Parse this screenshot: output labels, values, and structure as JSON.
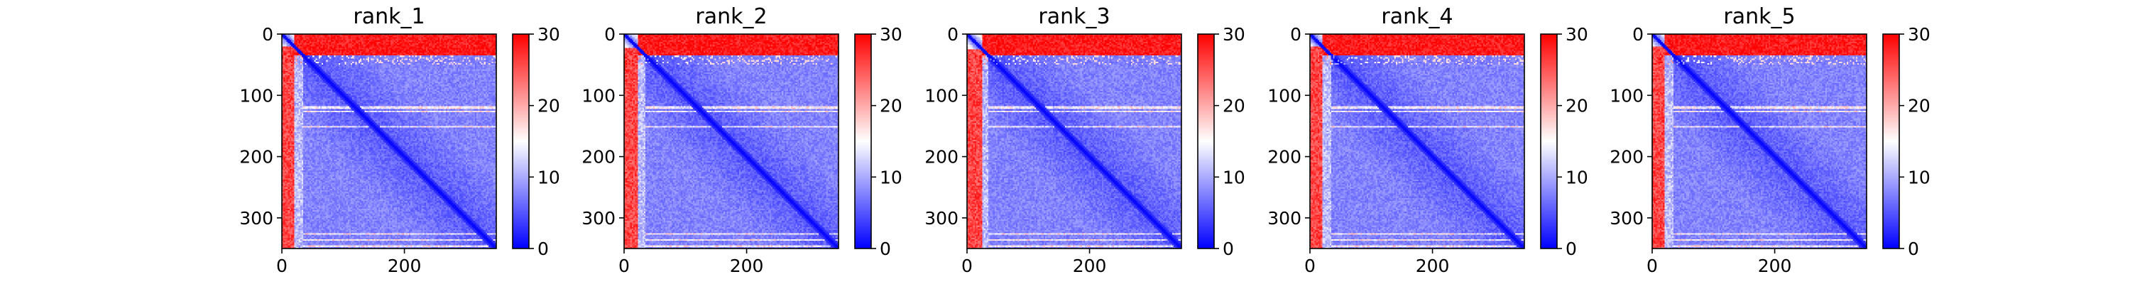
{
  "chart_data": [
    {
      "type": "heatmap",
      "title": "rank_1",
      "xlabel": "",
      "ylabel": "",
      "matrix_size": 350,
      "x_ticks": [
        0,
        200
      ],
      "y_ticks": [
        0,
        100,
        200,
        300
      ],
      "colorbar": {
        "ticks": [
          0,
          10,
          20,
          30
        ],
        "range": [
          0,
          30
        ],
        "colormap": [
          "#0000ff",
          "#ffffff",
          "#ff0000"
        ]
      },
      "structure": {
        "disordered_n_terminal_end": 20,
        "disordered_block_end": 35,
        "banded_rows": [
          118,
          125,
          150,
          325,
          335,
          345
        ]
      },
      "grid": false,
      "legend": "none"
    },
    {
      "type": "heatmap",
      "title": "rank_2",
      "xlabel": "",
      "ylabel": "",
      "matrix_size": 350,
      "x_ticks": [
        0,
        200
      ],
      "y_ticks": [
        0,
        100,
        200,
        300
      ],
      "colorbar": {
        "ticks": [
          0,
          10,
          20,
          30
        ],
        "range": [
          0,
          30
        ],
        "colormap": [
          "#0000ff",
          "#ffffff",
          "#ff0000"
        ]
      },
      "structure": {
        "disordered_n_terminal_end": 22,
        "disordered_block_end": 35,
        "banded_rows": [
          118,
          125,
          150,
          325,
          335,
          345
        ]
      },
      "grid": false,
      "legend": "none"
    },
    {
      "type": "heatmap",
      "title": "rank_3",
      "xlabel": "",
      "ylabel": "",
      "matrix_size": 350,
      "x_ticks": [
        0,
        200
      ],
      "y_ticks": [
        0,
        100,
        200,
        300
      ],
      "colorbar": {
        "ticks": [
          0,
          10,
          20,
          30
        ],
        "range": [
          0,
          30
        ],
        "colormap": [
          "#0000ff",
          "#ffffff",
          "#ff0000"
        ]
      },
      "structure": {
        "disordered_n_terminal_end": 24,
        "disordered_block_end": 35,
        "banded_rows": [
          118,
          125,
          150,
          325,
          335,
          345
        ]
      },
      "grid": false,
      "legend": "none"
    },
    {
      "type": "heatmap",
      "title": "rank_4",
      "xlabel": "",
      "ylabel": "",
      "matrix_size": 350,
      "x_ticks": [
        0,
        200
      ],
      "y_ticks": [
        0,
        100,
        200,
        300
      ],
      "colorbar": {
        "ticks": [
          0,
          10,
          20,
          30
        ],
        "range": [
          0,
          30
        ],
        "colormap": [
          "#0000ff",
          "#ffffff",
          "#ff0000"
        ]
      },
      "structure": {
        "disordered_n_terminal_end": 18,
        "disordered_block_end": 35,
        "banded_rows": [
          118,
          125,
          150,
          325,
          335,
          345
        ]
      },
      "grid": false,
      "legend": "none"
    },
    {
      "type": "heatmap",
      "title": "rank_5",
      "xlabel": "",
      "ylabel": "",
      "matrix_size": 350,
      "x_ticks": [
        0,
        200
      ],
      "y_ticks": [
        0,
        100,
        200,
        300
      ],
      "colorbar": {
        "ticks": [
          0,
          10,
          20,
          30
        ],
        "range": [
          0,
          30
        ],
        "colormap": [
          "#0000ff",
          "#ffffff",
          "#ff0000"
        ]
      },
      "structure": {
        "disordered_n_terminal_end": 20,
        "disordered_block_end": 35,
        "banded_rows": [
          118,
          125,
          150,
          325,
          335,
          345
        ]
      },
      "grid": false,
      "legend": "none"
    }
  ]
}
